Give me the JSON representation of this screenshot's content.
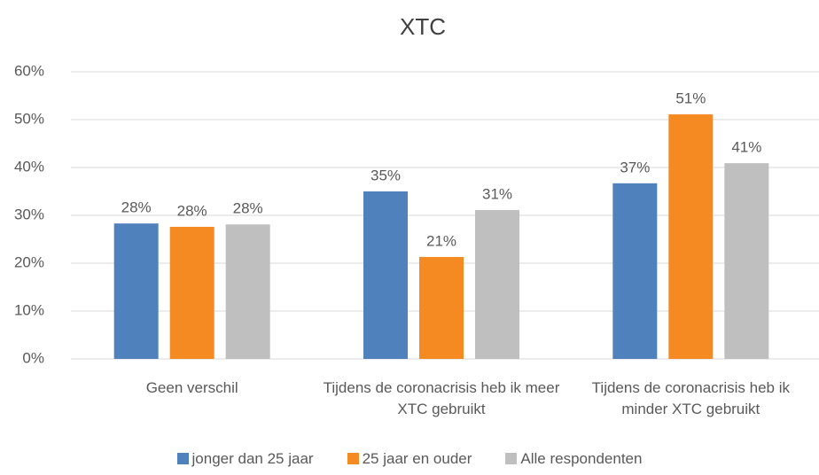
{
  "chart_data": {
    "type": "bar",
    "title": "XTC",
    "categories": [
      "Geen verschil",
      "Tijdens de coronacrisis heb ik meer XTC gebruikt",
      "Tijdens de coronacrisis heb ik minder XTC gebruikt"
    ],
    "series": [
      {
        "name": "jonger dan 25 jaar",
        "color": "#4f81bd",
        "values": [
          28.3,
          35.0,
          36.7
        ],
        "value_labels": [
          "28%",
          "35%",
          "37%"
        ]
      },
      {
        "name": "25 jaar en ouder",
        "color": "#f58a23",
        "values": [
          27.6,
          21.3,
          51.1
        ],
        "value_labels": [
          "28%",
          "21%",
          "51%"
        ]
      },
      {
        "name": "Alle respondenten",
        "color": "#bfbfbf",
        "values": [
          28.1,
          31.1,
          40.9
        ],
        "value_labels": [
          "28%",
          "31%",
          "41%"
        ]
      }
    ],
    "ylim": [
      0,
      60
    ],
    "yticks": [
      {
        "value": 0,
        "label": "0%"
      },
      {
        "value": 10,
        "label": "10%"
      },
      {
        "value": 20,
        "label": "20%"
      },
      {
        "value": 30,
        "label": "30%"
      },
      {
        "value": 40,
        "label": "40%"
      },
      {
        "value": 50,
        "label": "50%"
      },
      {
        "value": 60,
        "label": "60%"
      }
    ],
    "grid": true
  }
}
